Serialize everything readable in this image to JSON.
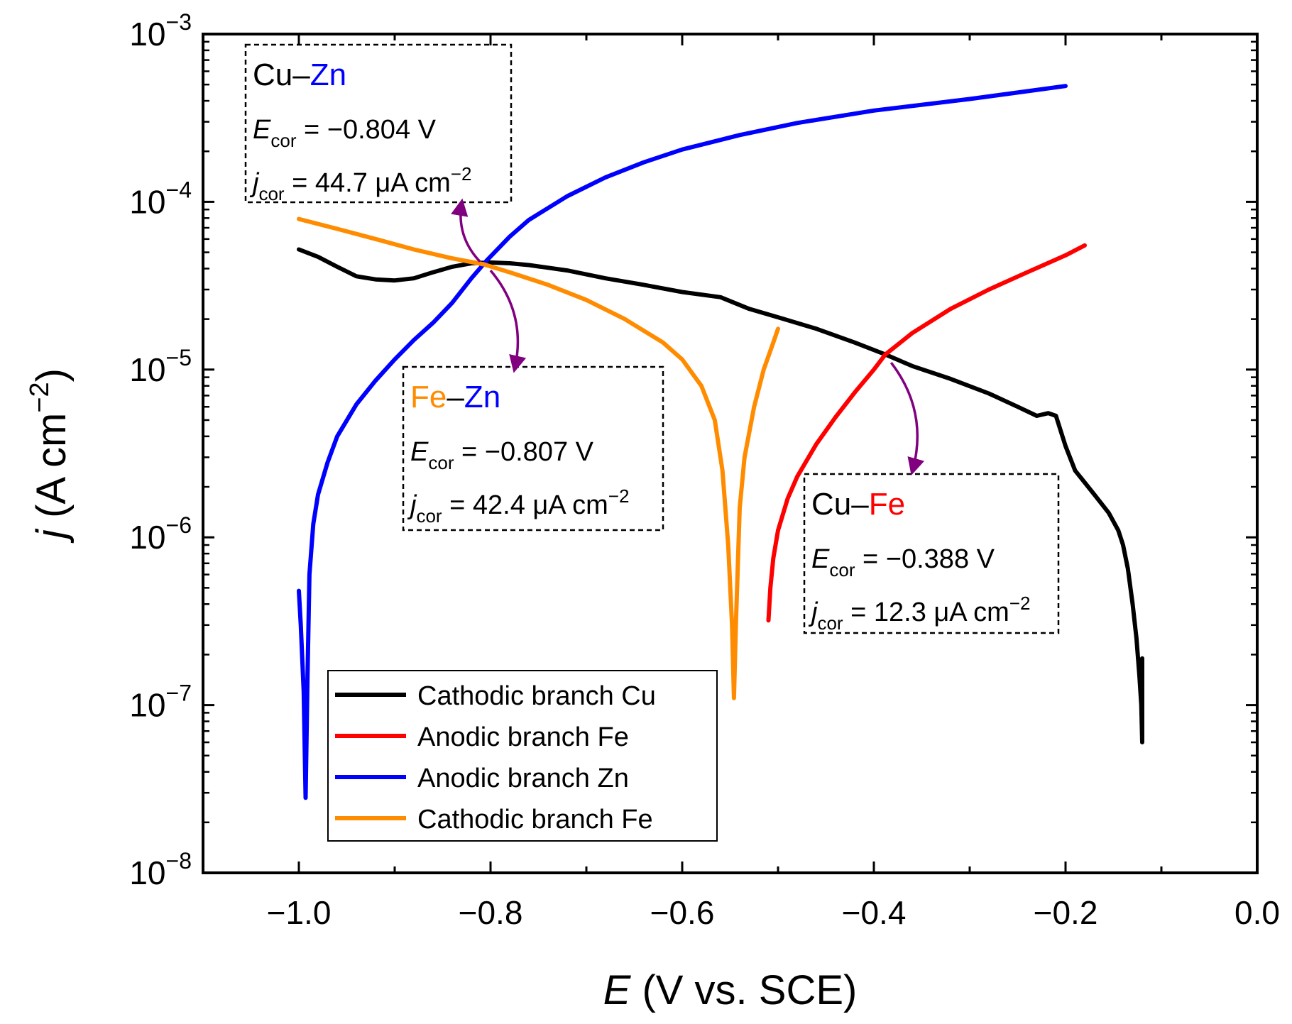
{
  "chart_data": {
    "type": "line",
    "xaxis": {
      "label_var": "E",
      "label_rest": " (V vs. SCE)",
      "range": [
        -1.1,
        0.0
      ],
      "ticks": [
        -1.0,
        -0.8,
        -0.6,
        -0.4,
        -0.2,
        0.0
      ],
      "tick_labels": [
        "−1.0",
        "−0.8",
        "−0.6",
        "−0.4",
        "−0.2",
        "0.0"
      ]
    },
    "yaxis": {
      "label_var": "j",
      "label_rest": " (A cm",
      "label_exp": "−2",
      "label_close": ")",
      "scale": "log",
      "range": [
        1e-08,
        0.001
      ],
      "ticks": [
        1e-08,
        1e-07,
        1e-06,
        1e-05,
        0.0001,
        0.001
      ],
      "tick_labels": [
        {
          "base": "10",
          "exp": "−8"
        },
        {
          "base": "10",
          "exp": "−7"
        },
        {
          "base": "10",
          "exp": "−6"
        },
        {
          "base": "10",
          "exp": "−5"
        },
        {
          "base": "10",
          "exp": "−4"
        },
        {
          "base": "10",
          "exp": "−3"
        }
      ]
    },
    "series": [
      {
        "name": "Cathodic branch Cu",
        "color": "#000000",
        "points": [
          [
            -1.0,
            5.2e-05
          ],
          [
            -0.98,
            4.7e-05
          ],
          [
            -0.96,
            4.1e-05
          ],
          [
            -0.94,
            3.6e-05
          ],
          [
            -0.92,
            3.45e-05
          ],
          [
            -0.9,
            3.4e-05
          ],
          [
            -0.88,
            3.5e-05
          ],
          [
            -0.86,
            3.8e-05
          ],
          [
            -0.84,
            4.1e-05
          ],
          [
            -0.82,
            4.3e-05
          ],
          [
            -0.8,
            4.35e-05
          ],
          [
            -0.78,
            4.3e-05
          ],
          [
            -0.76,
            4.2e-05
          ],
          [
            -0.72,
            3.9e-05
          ],
          [
            -0.68,
            3.5e-05
          ],
          [
            -0.64,
            3.2e-05
          ],
          [
            -0.6,
            2.9e-05
          ],
          [
            -0.56,
            2.7e-05
          ],
          [
            -0.53,
            2.3e-05
          ],
          [
            -0.5,
            2.05e-05
          ],
          [
            -0.46,
            1.75e-05
          ],
          [
            -0.42,
            1.45e-05
          ],
          [
            -0.388,
            1.23e-05
          ],
          [
            -0.36,
            1.05e-05
          ],
          [
            -0.32,
            8.8e-06
          ],
          [
            -0.28,
            7.2e-06
          ],
          [
            -0.25,
            6e-06
          ],
          [
            -0.23,
            5.3e-06
          ],
          [
            -0.218,
            5.5e-06
          ],
          [
            -0.21,
            5.3e-06
          ],
          [
            -0.2,
            3.5e-06
          ],
          [
            -0.19,
            2.5e-06
          ],
          [
            -0.17,
            1.8e-06
          ],
          [
            -0.155,
            1.4e-06
          ],
          [
            -0.145,
            1.1e-06
          ],
          [
            -0.14,
            9e-07
          ],
          [
            -0.135,
            6.5e-07
          ],
          [
            -0.13,
            4e-07
          ],
          [
            -0.126,
            2.5e-07
          ],
          [
            -0.123,
            1.5e-07
          ],
          [
            -0.121,
            1e-07
          ],
          [
            -0.12,
            6e-08
          ],
          [
            -0.12,
            1.9e-07
          ]
        ]
      },
      {
        "name": "Anodic branch Fe",
        "color": "#ff0000",
        "points": [
          [
            -0.51,
            3.2e-07
          ],
          [
            -0.508,
            5e-07
          ],
          [
            -0.505,
            7.5e-07
          ],
          [
            -0.5,
            1.1e-06
          ],
          [
            -0.49,
            1.7e-06
          ],
          [
            -0.48,
            2.3e-06
          ],
          [
            -0.46,
            3.6e-06
          ],
          [
            -0.44,
            5.2e-06
          ],
          [
            -0.42,
            7.3e-06
          ],
          [
            -0.4,
            1e-05
          ],
          [
            -0.388,
            1.23e-05
          ],
          [
            -0.36,
            1.65e-05
          ],
          [
            -0.32,
            2.3e-05
          ],
          [
            -0.28,
            3e-05
          ],
          [
            -0.24,
            3.8e-05
          ],
          [
            -0.2,
            4.8e-05
          ],
          [
            -0.18,
            5.5e-05
          ]
        ]
      },
      {
        "name": "Anodic branch Zn",
        "color": "#0000ff",
        "points": [
          [
            -1.0,
            4.8e-07
          ],
          [
            -0.998,
            3e-07
          ],
          [
            -0.995,
            1.2e-07
          ],
          [
            -0.993,
            2.8e-08
          ],
          [
            -0.991,
            1.5e-07
          ],
          [
            -0.989,
            6e-07
          ],
          [
            -0.985,
            1.2e-06
          ],
          [
            -0.98,
            1.8e-06
          ],
          [
            -0.97,
            2.8e-06
          ],
          [
            -0.96,
            4e-06
          ],
          [
            -0.94,
            6.2e-06
          ],
          [
            -0.92,
            8.6e-06
          ],
          [
            -0.9,
            1.15e-05
          ],
          [
            -0.88,
            1.5e-05
          ],
          [
            -0.86,
            1.9e-05
          ],
          [
            -0.84,
            2.5e-05
          ],
          [
            -0.82,
            3.5e-05
          ],
          [
            -0.804,
            4.47e-05
          ],
          [
            -0.78,
            6.2e-05
          ],
          [
            -0.76,
            7.8e-05
          ],
          [
            -0.72,
            0.000108
          ],
          [
            -0.68,
            0.00014
          ],
          [
            -0.64,
            0.000172
          ],
          [
            -0.6,
            0.000205
          ],
          [
            -0.54,
            0.00025
          ],
          [
            -0.48,
            0.000295
          ],
          [
            -0.4,
            0.00035
          ],
          [
            -0.3,
            0.00041
          ],
          [
            -0.2,
            0.00049
          ]
        ]
      },
      {
        "name": "Cathodic branch Fe",
        "color": "#ff8c00",
        "points": [
          [
            -1.0,
            7.9e-05
          ],
          [
            -0.96,
            6.9e-05
          ],
          [
            -0.92,
            6e-05
          ],
          [
            -0.88,
            5.2e-05
          ],
          [
            -0.84,
            4.6e-05
          ],
          [
            -0.807,
            4.24e-05
          ],
          [
            -0.78,
            3.8e-05
          ],
          [
            -0.74,
            3.2e-05
          ],
          [
            -0.7,
            2.6e-05
          ],
          [
            -0.66,
            2e-05
          ],
          [
            -0.62,
            1.45e-05
          ],
          [
            -0.6,
            1.15e-05
          ],
          [
            -0.58,
            8e-06
          ],
          [
            -0.566,
            5e-06
          ],
          [
            -0.558,
            2.5e-06
          ],
          [
            -0.552,
            9e-07
          ],
          [
            -0.548,
            3e-07
          ],
          [
            -0.546,
            1.1e-07
          ],
          [
            -0.544,
            3e-07
          ],
          [
            -0.54,
            1.5e-06
          ],
          [
            -0.535,
            3e-06
          ],
          [
            -0.525,
            6e-06
          ],
          [
            -0.515,
            1e-05
          ],
          [
            -0.505,
            1.45e-05
          ],
          [
            -0.5,
            1.75e-05
          ]
        ]
      }
    ],
    "annotations": [
      {
        "id": "cu-zn",
        "title": [
          {
            "text": "Cu",
            "color": "#000000"
          },
          {
            "text": "–",
            "color": "#000000"
          },
          {
            "text": "Zn",
            "color": "#0000ff"
          }
        ],
        "e_label": "E",
        "e_sub": "cor",
        "e_value": " = −0.804 V",
        "j_label": "j",
        "j_sub": "cor",
        "j_value": " = 44.7 μA cm",
        "j_exp": "−2",
        "arrow_from": [
          -0.811,
          4.4e-05
        ],
        "arrow_to": [
          -0.83,
          0.0001
        ]
      },
      {
        "id": "fe-zn",
        "title": [
          {
            "text": "Fe",
            "color": "#ff8c00"
          },
          {
            "text": "–",
            "color": "#000000"
          },
          {
            "text": "Zn",
            "color": "#0000ff"
          }
        ],
        "e_label": "E",
        "e_sub": "cor",
        "e_value": " = −0.807 V",
        "j_label": "j",
        "j_sub": "cor",
        "j_value": " = 42.4 μA cm",
        "j_exp": "−2",
        "arrow_from": [
          -0.8,
          3.9e-05
        ],
        "arrow_to": [
          -0.775,
          1e-05
        ]
      },
      {
        "id": "cu-fe",
        "title": [
          {
            "text": "Cu",
            "color": "#000000"
          },
          {
            "text": "–",
            "color": "#000000"
          },
          {
            "text": "Fe",
            "color": "#ff0000"
          }
        ],
        "e_label": "E",
        "e_sub": "cor",
        "e_value": " = −0.388 V",
        "j_label": "j",
        "j_sub": "cor",
        "j_value": " = 12.3 μA cm",
        "j_exp": "−2",
        "arrow_from": [
          -0.382,
          1.1e-05
        ],
        "arrow_to": [
          -0.36,
          2.45e-06
        ]
      }
    ],
    "arrow_color": "#800080",
    "legend": {
      "placement": "bottom-left",
      "entries": [
        "Cathodic branch Cu",
        "Anodic branch Fe",
        "Anodic branch Zn",
        "Cathodic branch Fe"
      ]
    }
  }
}
